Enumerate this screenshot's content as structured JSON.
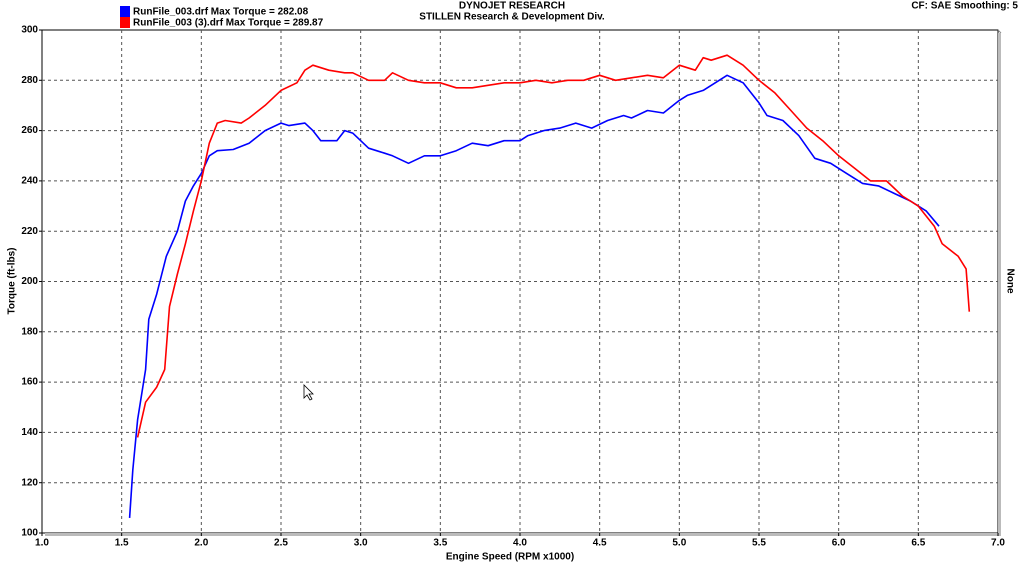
{
  "chart_data": {
    "type": "line",
    "title": "DYNOJET RESEARCH",
    "subtitle": "STILLEN Research & Development Div.",
    "annotation": "CF: SAE  Smoothing: 5",
    "x_label": "Engine Speed (RPM x1000)",
    "y_label": "Torque (ft-lbs)",
    "y2_label": "None",
    "grid": true,
    "xlim": [
      1,
      7
    ],
    "ylim": [
      100,
      300
    ],
    "xticks": [
      {
        "value": 1,
        "label": "1.0"
      },
      1.5,
      {
        "value": 2,
        "label": "2.0"
      },
      2.5,
      {
        "value": 3,
        "label": "3.0"
      },
      3.5,
      {
        "value": 4,
        "label": "4.0"
      },
      4.5,
      {
        "value": 5,
        "label": "5.0"
      },
      5.5,
      {
        "value": 6,
        "label": "6.0"
      },
      6.5,
      {
        "value": 7,
        "label": "7.0"
      }
    ],
    "yticks": [
      100,
      120,
      140,
      160,
      180,
      200,
      220,
      240,
      260,
      280,
      300
    ],
    "series": [
      {
        "name": "RunFile_003.drf Max Torque = 282.08",
        "color": "#0000ff",
        "x": [
          1.55,
          1.57,
          1.6,
          1.65,
          1.67,
          1.72,
          1.78,
          1.85,
          1.9,
          1.95,
          2.0,
          2.05,
          2.1,
          2.2,
          2.3,
          2.4,
          2.5,
          2.55,
          2.65,
          2.7,
          2.75,
          2.85,
          2.9,
          2.95,
          3.05,
          3.15,
          3.2,
          3.3,
          3.4,
          3.5,
          3.6,
          3.7,
          3.8,
          3.9,
          4.0,
          4.05,
          4.15,
          4.25,
          4.35,
          4.45,
          4.55,
          4.65,
          4.7,
          4.8,
          4.9,
          5.0,
          5.05,
          5.15,
          5.25,
          5.3,
          5.4,
          5.5,
          5.55,
          5.65,
          5.75,
          5.85,
          5.95,
          6.05,
          6.15,
          6.25,
          6.35,
          6.45,
          6.55,
          6.63
        ],
        "values": [
          106,
          125,
          145,
          165,
          185,
          195,
          210,
          220,
          232,
          238,
          243,
          250,
          252,
          252.5,
          255,
          260,
          263,
          262,
          263,
          260,
          256,
          256,
          260,
          259,
          253,
          251,
          250,
          247,
          250,
          250,
          252,
          255,
          254,
          256,
          256,
          258,
          260,
          261,
          263,
          261,
          264,
          266,
          265,
          268,
          267,
          272,
          274,
          276,
          280,
          282,
          279,
          271,
          266,
          264,
          258,
          249,
          247,
          243,
          239,
          238,
          235,
          232,
          228,
          222
        ]
      },
      {
        "name": "RunFile_003 (3).drf Max Torque = 289.87",
        "color": "#ff0000",
        "x": [
          1.6,
          1.65,
          1.72,
          1.77,
          1.8,
          1.85,
          1.9,
          1.95,
          2.0,
          2.05,
          2.1,
          2.15,
          2.25,
          2.3,
          2.4,
          2.5,
          2.6,
          2.65,
          2.7,
          2.8,
          2.9,
          2.95,
          3.05,
          3.15,
          3.2,
          3.3,
          3.4,
          3.5,
          3.6,
          3.7,
          3.8,
          3.9,
          4.0,
          4.1,
          4.2,
          4.3,
          4.4,
          4.5,
          4.6,
          4.7,
          4.8,
          4.9,
          5.0,
          5.1,
          5.15,
          5.2,
          5.3,
          5.4,
          5.5,
          5.6,
          5.7,
          5.8,
          5.9,
          6.0,
          6.1,
          6.2,
          6.3,
          6.4,
          6.5,
          6.6,
          6.65,
          6.75,
          6.8,
          6.82
        ],
        "values": [
          138,
          152,
          158,
          165,
          190,
          203,
          215,
          228,
          240,
          255,
          263,
          264,
          263,
          265,
          270,
          276,
          279,
          284,
          286,
          284,
          283,
          283,
          280,
          280,
          283,
          280,
          279,
          279,
          277,
          277,
          278,
          279,
          279,
          280,
          279,
          280,
          280,
          282,
          280,
          281,
          282,
          281,
          286,
          284,
          289,
          288,
          290,
          286,
          280,
          275,
          268,
          261,
          256,
          250,
          245,
          240,
          240,
          234,
          230,
          222,
          215,
          210,
          205,
          188
        ]
      }
    ]
  }
}
